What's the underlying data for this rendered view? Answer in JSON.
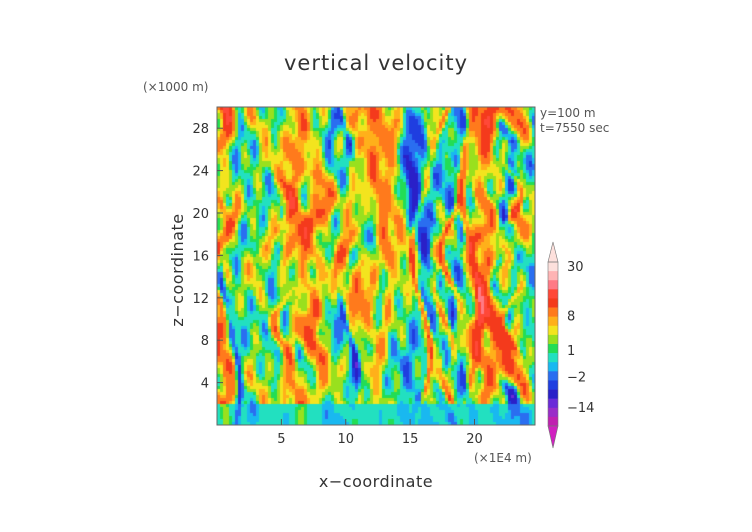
{
  "chart_data": {
    "type": "heatmap",
    "title": "vertical velocity",
    "xlabel": "x−coordinate",
    "ylabel": "z−coordinate",
    "x_unit": "(×1E4 m)",
    "y_unit": "(×1000 m)",
    "xlim": [
      0,
      24.7
    ],
    "ylim": [
      0,
      30
    ],
    "x_ticks": [
      5,
      10,
      15,
      20
    ],
    "y_ticks": [
      4,
      8,
      12,
      16,
      20,
      24,
      28
    ],
    "annotations": [
      "y=100 m",
      "t=7550 sec"
    ],
    "colorbar": {
      "tick_labels": [
        "30",
        "8",
        "1",
        "−2",
        "−14"
      ],
      "tick_values": [
        30,
        8,
        1,
        -2,
        -14
      ],
      "levels": [
        -30,
        -20,
        -14,
        -10,
        -6,
        -4,
        -2,
        -1,
        1,
        2,
        4,
        6,
        8,
        12,
        18,
        24,
        30
      ],
      "colors": [
        "#c020b0",
        "#9a2cc8",
        "#6a2ad8",
        "#2a20c8",
        "#1f3ee0",
        "#2a6ef0",
        "#19b8f0",
        "#22e0c0",
        "#22dd55",
        "#99e01e",
        "#f3e41e",
        "#ffb01a",
        "#ff7a1c",
        "#f43a1c",
        "#ff4838",
        "#ff7a86",
        "#ffb4b4",
        "#fde0dc"
      ]
    }
  }
}
